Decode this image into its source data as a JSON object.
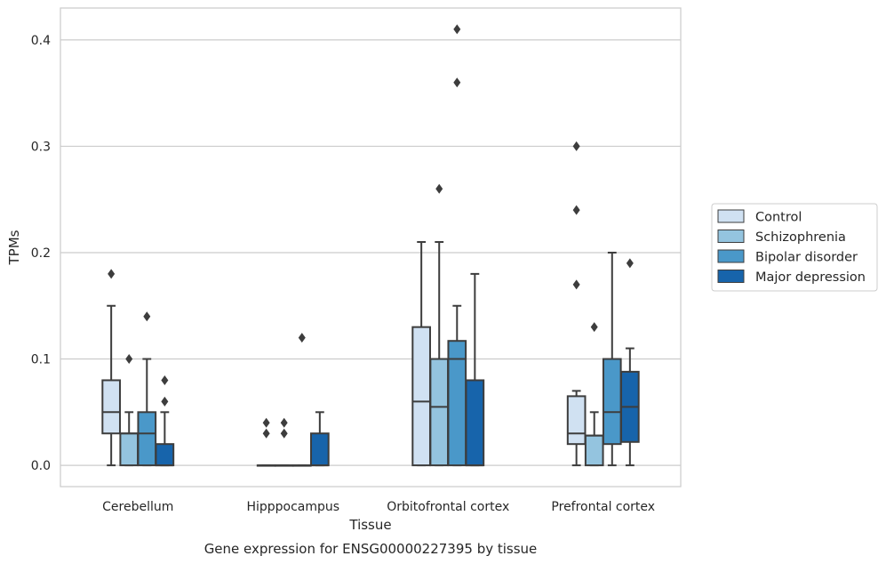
{
  "chart_data": {
    "type": "box",
    "title": "",
    "caption": "Gene expression for ENSG00000227395 by tissue",
    "xlabel": "Tissue",
    "ylabel": "TPMs",
    "ylim": [
      -0.02,
      0.43
    ],
    "yticks": [
      0.0,
      0.1,
      0.2,
      0.3,
      0.4
    ],
    "ytick_labels": [
      "0.0",
      "0.1",
      "0.2",
      "0.3",
      "0.4"
    ],
    "grid": "horizontal",
    "legend_position": "right",
    "categories": [
      "Cerebellum",
      "Hipppocampus",
      "Orbitofrontal cortex",
      "Prefrontal cortex"
    ],
    "series": [
      {
        "name": "Control",
        "color": "#d0e1f2",
        "boxes": [
          {
            "whislo": 0.0,
            "q1": 0.03,
            "med": 0.05,
            "q3": 0.08,
            "whishi": 0.15,
            "fliers": [
              0.18
            ]
          },
          {
            "whislo": 0.0,
            "q1": 0.0,
            "med": 0.0,
            "q3": 0.0,
            "whishi": 0.0,
            "fliers": [
              0.03,
              0.04
            ]
          },
          {
            "whislo": 0.0,
            "q1": 0.0,
            "med": 0.06,
            "q3": 0.13,
            "whishi": 0.21,
            "fliers": []
          },
          {
            "whislo": 0.0,
            "q1": 0.02,
            "med": 0.03,
            "q3": 0.065,
            "whishi": 0.07,
            "fliers": [
              0.17,
              0.24,
              0.3
            ]
          }
        ]
      },
      {
        "name": "Schizophrenia",
        "color": "#94c4df",
        "boxes": [
          {
            "whislo": 0.0,
            "q1": 0.0,
            "med": 0.03,
            "q3": 0.03,
            "whishi": 0.05,
            "fliers": [
              0.1
            ]
          },
          {
            "whislo": 0.0,
            "q1": 0.0,
            "med": 0.0,
            "q3": 0.0,
            "whishi": 0.0,
            "fliers": [
              0.03,
              0.04
            ]
          },
          {
            "whislo": 0.0,
            "q1": 0.0,
            "med": 0.055,
            "q3": 0.1,
            "whishi": 0.21,
            "fliers": [
              0.26
            ]
          },
          {
            "whislo": 0.0,
            "q1": 0.0,
            "med": 0.028,
            "q3": 0.028,
            "whishi": 0.05,
            "fliers": [
              0.13
            ]
          }
        ]
      },
      {
        "name": "Bipolar disorder",
        "color": "#4a98c9",
        "boxes": [
          {
            "whislo": 0.0,
            "q1": 0.0,
            "med": 0.03,
            "q3": 0.05,
            "whishi": 0.1,
            "fliers": [
              0.14
            ]
          },
          {
            "whislo": 0.0,
            "q1": 0.0,
            "med": 0.0,
            "q3": 0.0,
            "whishi": 0.0,
            "fliers": [
              0.12
            ]
          },
          {
            "whislo": 0.0,
            "q1": 0.0,
            "med": 0.1,
            "q3": 0.117,
            "whishi": 0.15,
            "fliers": [
              0.36,
              0.41
            ]
          },
          {
            "whislo": 0.0,
            "q1": 0.02,
            "med": 0.05,
            "q3": 0.1,
            "whishi": 0.2,
            "fliers": []
          }
        ]
      },
      {
        "name": "Major depression",
        "color": "#1764ab",
        "boxes": [
          {
            "whislo": 0.0,
            "q1": 0.0,
            "med": 0.0,
            "q3": 0.02,
            "whishi": 0.05,
            "fliers": [
              0.06,
              0.08
            ]
          },
          {
            "whislo": 0.0,
            "q1": 0.0,
            "med": 0.0,
            "q3": 0.03,
            "whishi": 0.05,
            "fliers": []
          },
          {
            "whislo": 0.0,
            "q1": 0.0,
            "med": 0.0,
            "q3": 0.08,
            "whishi": 0.18,
            "fliers": []
          },
          {
            "whislo": 0.0,
            "q1": 0.022,
            "med": 0.055,
            "q3": 0.088,
            "whishi": 0.11,
            "fliers": [
              0.19
            ]
          }
        ]
      }
    ]
  }
}
